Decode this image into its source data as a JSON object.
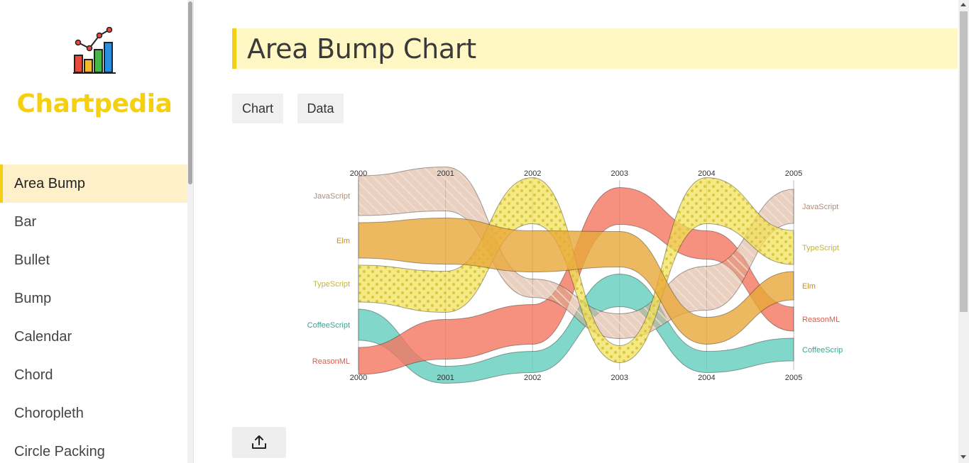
{
  "app": {
    "brand": "Chartpedia",
    "logo_icon": "bar-chart-logo-icon"
  },
  "sidebar": {
    "items": [
      {
        "label": "Area Bump",
        "active": true
      },
      {
        "label": "Bar"
      },
      {
        "label": "Bullet"
      },
      {
        "label": "Bump"
      },
      {
        "label": "Calendar"
      },
      {
        "label": "Chord"
      },
      {
        "label": "Choropleth"
      },
      {
        "label": "Circle Packing"
      }
    ]
  },
  "main": {
    "title": "Area Bump Chart",
    "tabs": [
      {
        "label": "Chart"
      },
      {
        "label": "Data"
      }
    ],
    "export_icon": "upload-icon"
  },
  "colors": {
    "accent": "#f5d012",
    "JavaScript": "#d9a98c",
    "Elm": "#e8a838",
    "TypeScript": "#f1e15b",
    "CoffeeScript": "#61cdbb",
    "ReasonML": "#f47560"
  },
  "chart_data": {
    "type": "area-bump",
    "x": [
      "2000",
      "2001",
      "2002",
      "2003",
      "2004",
      "2005"
    ],
    "series": [
      {
        "name": "JavaScript",
        "ranks": [
          1,
          1,
          3,
          4,
          3,
          1
        ],
        "widths": [
          56,
          62,
          26,
          35,
          62,
          48
        ]
      },
      {
        "name": "Elm",
        "ranks": [
          2,
          2,
          2,
          2,
          4,
          3
        ],
        "widths": [
          50,
          65,
          58,
          50,
          38,
          40
        ]
      },
      {
        "name": "TypeScript",
        "ranks": [
          3,
          3,
          1,
          5,
          1,
          2
        ],
        "widths": [
          52,
          58,
          65,
          24,
          65,
          48
        ]
      },
      {
        "name": "CoffeeScript",
        "ranks": [
          4,
          5,
          5,
          3,
          5,
          5
        ],
        "widths": [
          44,
          24,
          30,
          46,
          30,
          32
        ]
      },
      {
        "name": "ReasonML",
        "ranks": [
          5,
          4,
          4,
          1,
          2,
          4
        ],
        "widths": [
          38,
          56,
          56,
          52,
          40,
          34
        ]
      }
    ],
    "start_labels": [
      "JavaScript",
      "Elm",
      "TypeScript",
      "CoffeeScript",
      "ReasonML"
    ],
    "end_labels": [
      "JavaScript",
      "TypeScript",
      "Elm",
      "ReasonML",
      "CoffeeScrip"
    ]
  }
}
